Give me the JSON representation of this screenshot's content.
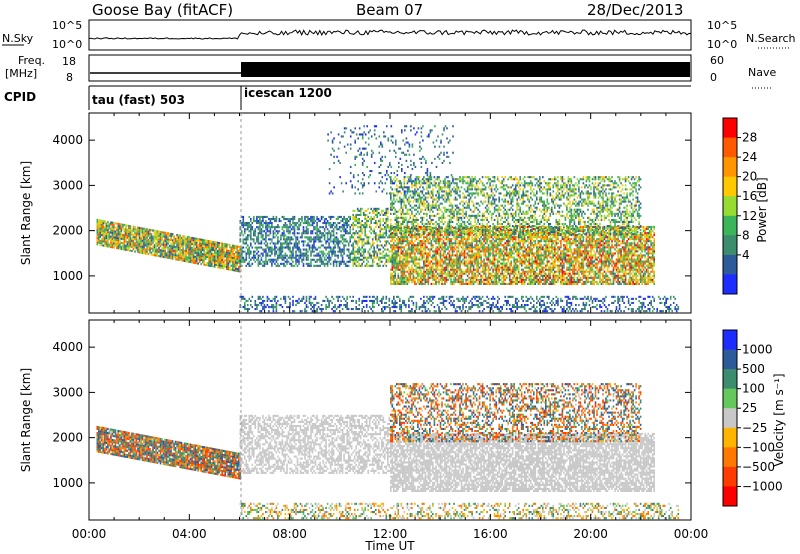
{
  "header": {
    "station": "Goose Bay (fitACF)",
    "beam": "Beam 07",
    "date": "28/Dec/2013"
  },
  "strips": {
    "nsky_label": "N.Sky",
    "nsky_ticks": [
      "10^5",
      "10^0"
    ],
    "nsearch_label": "N.Search",
    "nsearch_ticks": [
      "10^5",
      "10^0"
    ],
    "freq_label_top": "Freq.",
    "freq_label_bot": "[MHz]",
    "freq_ticks": [
      "18",
      "8"
    ],
    "nave_label": "Nave",
    "nave_ticks": [
      "60",
      "0"
    ],
    "cpid_label": "CPID",
    "cpid_segments": [
      {
        "name": "tau (fast) 503",
        "start_hour": 0
      },
      {
        "name": "icescan 1200",
        "start_hour": 6
      }
    ]
  },
  "axes": {
    "ylabel": "Slant Range [km]",
    "xlabel": "Time UT",
    "x_tick_labels": [
      "00:00",
      "04:00",
      "08:00",
      "12:00",
      "16:00",
      "20:00",
      "00:00"
    ],
    "y_tick_labels": [
      "1000",
      "2000",
      "3000",
      "4000"
    ]
  },
  "colorbars": {
    "power": {
      "label": "Power [dB]",
      "tick_labels": [
        "28",
        "24",
        "20",
        "16",
        "12",
        "8",
        "4"
      ],
      "colors": [
        "#ff0000",
        "#ff5a00",
        "#ff9600",
        "#ffc800",
        "#96dc32",
        "#3cb45a",
        "#3c8c6e",
        "#2d5a9b",
        "#1e2dff"
      ]
    },
    "velocity": {
      "label": "Velocity [m s⁻¹]",
      "tick_labels": [
        "1000",
        "500",
        "100",
        "25",
        "−25",
        "−100",
        "−500",
        "−1000"
      ],
      "colors": [
        "#1e2dff",
        "#2d5a9b",
        "#3c8c6e",
        "#64c85a",
        "#c8c8c8",
        "#ffb400",
        "#ff7800",
        "#ff3c00",
        "#ff0000"
      ]
    }
  },
  "chart_data": {
    "type": "heatmap",
    "x_range_hours": [
      0,
      24
    ],
    "y_range_km": [
      180,
      4600
    ],
    "power_panel": {
      "scatter_regions": [
        {
          "t": [
            0.3,
            6.0
          ],
          "r_center_start": 1950,
          "r_center_end": 1350,
          "width_km": 550,
          "power_dB": [
            6,
            26
          ],
          "density": 0.9
        },
        {
          "t": [
            6.0,
            10.5
          ],
          "r": [
            1200,
            2300
          ],
          "power_dB": [
            4,
            14
          ],
          "density": 0.55
        },
        {
          "t": [
            10.5,
            12.0
          ],
          "r": [
            1200,
            2500
          ],
          "power_dB": [
            6,
            20
          ],
          "density": 0.5
        },
        {
          "t": [
            12.0,
            22.5
          ],
          "r": [
            800,
            2100
          ],
          "power_dB": [
            8,
            28
          ],
          "density": 0.75
        },
        {
          "t": [
            12.0,
            22.0
          ],
          "r": [
            1900,
            3200
          ],
          "power_dB": [
            6,
            20
          ],
          "density": 0.45
        },
        {
          "t": [
            6.0,
            23.5
          ],
          "r": [
            200,
            550
          ],
          "power_dB": [
            4,
            12
          ],
          "density": 0.35
        },
        {
          "t": [
            9.5,
            14.5
          ],
          "r": [
            2800,
            4300
          ],
          "power_dB": [
            4,
            12
          ],
          "density": 0.12
        }
      ]
    },
    "velocity_panel": {
      "scatter_regions": [
        {
          "t": [
            0.3,
            6.0
          ],
          "r_center_start": 1950,
          "r_center_end": 1350,
          "width_km": 550,
          "velocity_ms": [
            -500,
            500
          ],
          "density": 0.9
        },
        {
          "t": [
            6.0,
            12.0
          ],
          "r": [
            1200,
            2500
          ],
          "velocity_ms": [
            -25,
            25
          ],
          "density": 0.55
        },
        {
          "t": [
            12.0,
            22.5
          ],
          "r": [
            800,
            2100
          ],
          "velocity_ms": [
            -25,
            25
          ],
          "density": 0.75
        },
        {
          "t": [
            12.0,
            22.0
          ],
          "r": [
            1900,
            3200
          ],
          "velocity_ms": [
            -500,
            500
          ],
          "density": 0.45
        },
        {
          "t": [
            6.0,
            23.5
          ],
          "r": [
            200,
            550
          ],
          "velocity_ms": [
            -100,
            100
          ],
          "density": 0.35
        }
      ]
    }
  }
}
